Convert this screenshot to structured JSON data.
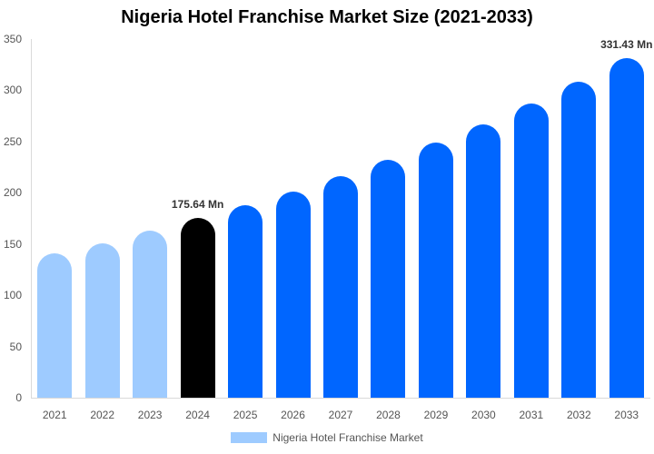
{
  "chart_data": {
    "type": "bar",
    "title": "Nigeria Hotel Franchise Market Size (2021-2033)",
    "xlabel": "",
    "ylabel": "",
    "ylim": [
      0,
      350
    ],
    "yticks": [
      0,
      50,
      100,
      150,
      200,
      250,
      300,
      350
    ],
    "grid": false,
    "legend_position": "bottom",
    "categories": [
      "2021",
      "2022",
      "2023",
      "2024",
      "2025",
      "2026",
      "2027",
      "2028",
      "2029",
      "2030",
      "2031",
      "2032",
      "2033"
    ],
    "series": [
      {
        "name": "Nigeria Hotel Franchise Market",
        "values": [
          141,
          151,
          163,
          175.64,
          188,
          201,
          216,
          232,
          249,
          267,
          287,
          308,
          331.43
        ]
      }
    ],
    "bar_colors": [
      "#9ecbff",
      "#9ecbff",
      "#9ecbff",
      "#000000",
      "#0066ff",
      "#0066ff",
      "#0066ff",
      "#0066ff",
      "#0066ff",
      "#0066ff",
      "#0066ff",
      "#0066ff",
      "#0066ff"
    ],
    "annotations": [
      {
        "category": "2024",
        "text": "175.64 Mn"
      },
      {
        "category": "2033",
        "text": "331.43 Mn"
      }
    ]
  },
  "legend": {
    "label": "Nigeria Hotel Franchise Market",
    "color": "#9ecbff"
  }
}
